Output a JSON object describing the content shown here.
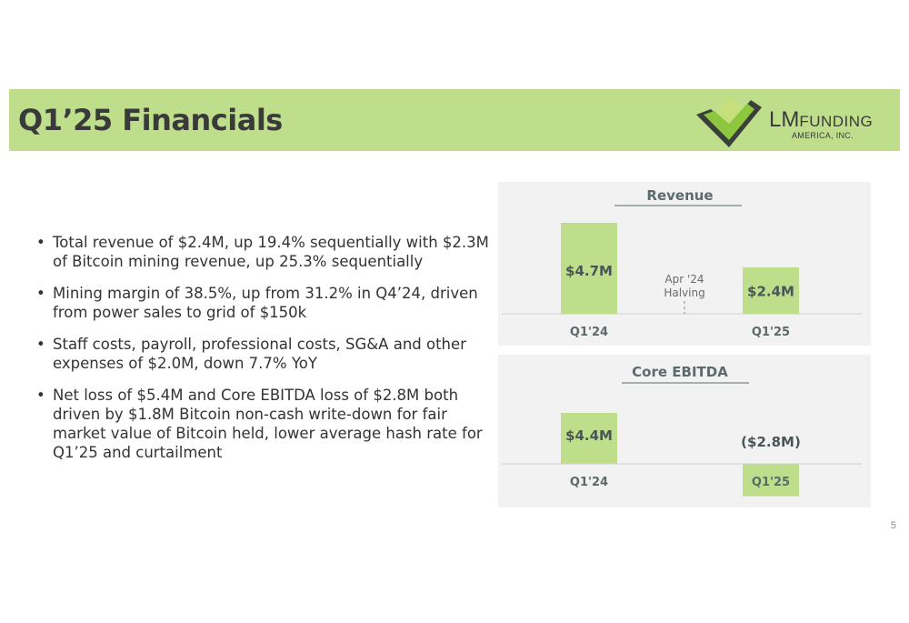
{
  "slide": {
    "title": "Q1’25 Financials",
    "page_number": "5",
    "accent_color": "#bede8c",
    "bar_color": "#bede8c"
  },
  "logo": {
    "lm": "LM",
    "funding": "FUNDING",
    "sub": "AMERICA, INC."
  },
  "bullets": [
    "Total revenue of $2.4M, up 19.4% sequentially with $2.3M of Bitcoin mining revenue, up 25.3% sequentially",
    "Mining margin of 38.5%, up from 31.2% in Q4’24, driven from power sales to grid of $150k",
    "Staff costs, payroll, professional costs, SG&A and other expenses of $2.0M, down 7.7% YoY",
    "Net loss of $5.4M and Core EBITDA loss of $2.8M both driven by $1.8M Bitcoin non-cash write-down for fair market value of Bitcoin held, lower average hash rate for Q1’25 and curtailment"
  ],
  "chart_data": [
    {
      "type": "bar",
      "title": "Revenue",
      "categories": [
        "Q1'24",
        "Q1'25"
      ],
      "values": [
        4.7,
        2.4
      ],
      "data_labels": [
        "$4.7M",
        "$2.4M"
      ],
      "annotation": [
        "Apr '24",
        "Halving"
      ],
      "ylim": [
        0,
        4.7
      ],
      "grid": false
    },
    {
      "type": "bar",
      "title": "Core EBITDA",
      "categories": [
        "Q1'24",
        "Q1'25"
      ],
      "values": [
        4.4,
        -2.8
      ],
      "data_labels": [
        "$4.4M",
        "($2.8M)"
      ],
      "ylim": [
        -2.8,
        4.4
      ],
      "grid": false
    }
  ]
}
